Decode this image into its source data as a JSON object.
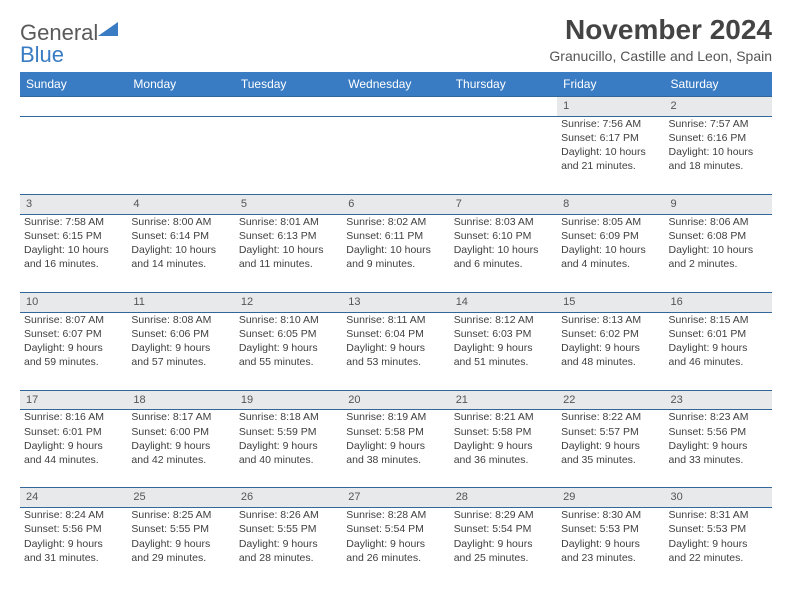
{
  "logo": {
    "word1": "General",
    "word2": "Blue"
  },
  "title": "November 2024",
  "location": "Granucillo, Castille and Leon, Spain",
  "colors": {
    "header_bg": "#3a7cc4",
    "header_text": "#ffffff",
    "row_border": "#336699",
    "daynum_bg": "#e8e9ea",
    "text": "#404040",
    "title_color": "#444444"
  },
  "days_of_week": [
    "Sunday",
    "Monday",
    "Tuesday",
    "Wednesday",
    "Thursday",
    "Friday",
    "Saturday"
  ],
  "weeks": [
    {
      "nums": [
        "",
        "",
        "",
        "",
        "",
        "1",
        "2"
      ],
      "cells": [
        null,
        null,
        null,
        null,
        null,
        {
          "sr": "Sunrise: 7:56 AM",
          "ss": "Sunset: 6:17 PM",
          "d1": "Daylight: 10 hours",
          "d2": "and 21 minutes."
        },
        {
          "sr": "Sunrise: 7:57 AM",
          "ss": "Sunset: 6:16 PM",
          "d1": "Daylight: 10 hours",
          "d2": "and 18 minutes."
        }
      ]
    },
    {
      "nums": [
        "3",
        "4",
        "5",
        "6",
        "7",
        "8",
        "9"
      ],
      "cells": [
        {
          "sr": "Sunrise: 7:58 AM",
          "ss": "Sunset: 6:15 PM",
          "d1": "Daylight: 10 hours",
          "d2": "and 16 minutes."
        },
        {
          "sr": "Sunrise: 8:00 AM",
          "ss": "Sunset: 6:14 PM",
          "d1": "Daylight: 10 hours",
          "d2": "and 14 minutes."
        },
        {
          "sr": "Sunrise: 8:01 AM",
          "ss": "Sunset: 6:13 PM",
          "d1": "Daylight: 10 hours",
          "d2": "and 11 minutes."
        },
        {
          "sr": "Sunrise: 8:02 AM",
          "ss": "Sunset: 6:11 PM",
          "d1": "Daylight: 10 hours",
          "d2": "and 9 minutes."
        },
        {
          "sr": "Sunrise: 8:03 AM",
          "ss": "Sunset: 6:10 PM",
          "d1": "Daylight: 10 hours",
          "d2": "and 6 minutes."
        },
        {
          "sr": "Sunrise: 8:05 AM",
          "ss": "Sunset: 6:09 PM",
          "d1": "Daylight: 10 hours",
          "d2": "and 4 minutes."
        },
        {
          "sr": "Sunrise: 8:06 AM",
          "ss": "Sunset: 6:08 PM",
          "d1": "Daylight: 10 hours",
          "d2": "and 2 minutes."
        }
      ]
    },
    {
      "nums": [
        "10",
        "11",
        "12",
        "13",
        "14",
        "15",
        "16"
      ],
      "cells": [
        {
          "sr": "Sunrise: 8:07 AM",
          "ss": "Sunset: 6:07 PM",
          "d1": "Daylight: 9 hours",
          "d2": "and 59 minutes."
        },
        {
          "sr": "Sunrise: 8:08 AM",
          "ss": "Sunset: 6:06 PM",
          "d1": "Daylight: 9 hours",
          "d2": "and 57 minutes."
        },
        {
          "sr": "Sunrise: 8:10 AM",
          "ss": "Sunset: 6:05 PM",
          "d1": "Daylight: 9 hours",
          "d2": "and 55 minutes."
        },
        {
          "sr": "Sunrise: 8:11 AM",
          "ss": "Sunset: 6:04 PM",
          "d1": "Daylight: 9 hours",
          "d2": "and 53 minutes."
        },
        {
          "sr": "Sunrise: 8:12 AM",
          "ss": "Sunset: 6:03 PM",
          "d1": "Daylight: 9 hours",
          "d2": "and 51 minutes."
        },
        {
          "sr": "Sunrise: 8:13 AM",
          "ss": "Sunset: 6:02 PM",
          "d1": "Daylight: 9 hours",
          "d2": "and 48 minutes."
        },
        {
          "sr": "Sunrise: 8:15 AM",
          "ss": "Sunset: 6:01 PM",
          "d1": "Daylight: 9 hours",
          "d2": "and 46 minutes."
        }
      ]
    },
    {
      "nums": [
        "17",
        "18",
        "19",
        "20",
        "21",
        "22",
        "23"
      ],
      "cells": [
        {
          "sr": "Sunrise: 8:16 AM",
          "ss": "Sunset: 6:01 PM",
          "d1": "Daylight: 9 hours",
          "d2": "and 44 minutes."
        },
        {
          "sr": "Sunrise: 8:17 AM",
          "ss": "Sunset: 6:00 PM",
          "d1": "Daylight: 9 hours",
          "d2": "and 42 minutes."
        },
        {
          "sr": "Sunrise: 8:18 AM",
          "ss": "Sunset: 5:59 PM",
          "d1": "Daylight: 9 hours",
          "d2": "and 40 minutes."
        },
        {
          "sr": "Sunrise: 8:19 AM",
          "ss": "Sunset: 5:58 PM",
          "d1": "Daylight: 9 hours",
          "d2": "and 38 minutes."
        },
        {
          "sr": "Sunrise: 8:21 AM",
          "ss": "Sunset: 5:58 PM",
          "d1": "Daylight: 9 hours",
          "d2": "and 36 minutes."
        },
        {
          "sr": "Sunrise: 8:22 AM",
          "ss": "Sunset: 5:57 PM",
          "d1": "Daylight: 9 hours",
          "d2": "and 35 minutes."
        },
        {
          "sr": "Sunrise: 8:23 AM",
          "ss": "Sunset: 5:56 PM",
          "d1": "Daylight: 9 hours",
          "d2": "and 33 minutes."
        }
      ]
    },
    {
      "nums": [
        "24",
        "25",
        "26",
        "27",
        "28",
        "29",
        "30"
      ],
      "cells": [
        {
          "sr": "Sunrise: 8:24 AM",
          "ss": "Sunset: 5:56 PM",
          "d1": "Daylight: 9 hours",
          "d2": "and 31 minutes."
        },
        {
          "sr": "Sunrise: 8:25 AM",
          "ss": "Sunset: 5:55 PM",
          "d1": "Daylight: 9 hours",
          "d2": "and 29 minutes."
        },
        {
          "sr": "Sunrise: 8:26 AM",
          "ss": "Sunset: 5:55 PM",
          "d1": "Daylight: 9 hours",
          "d2": "and 28 minutes."
        },
        {
          "sr": "Sunrise: 8:28 AM",
          "ss": "Sunset: 5:54 PM",
          "d1": "Daylight: 9 hours",
          "d2": "and 26 minutes."
        },
        {
          "sr": "Sunrise: 8:29 AM",
          "ss": "Sunset: 5:54 PM",
          "d1": "Daylight: 9 hours",
          "d2": "and 25 minutes."
        },
        {
          "sr": "Sunrise: 8:30 AM",
          "ss": "Sunset: 5:53 PM",
          "d1": "Daylight: 9 hours",
          "d2": "and 23 minutes."
        },
        {
          "sr": "Sunrise: 8:31 AM",
          "ss": "Sunset: 5:53 PM",
          "d1": "Daylight: 9 hours",
          "d2": "and 22 minutes."
        }
      ]
    }
  ]
}
